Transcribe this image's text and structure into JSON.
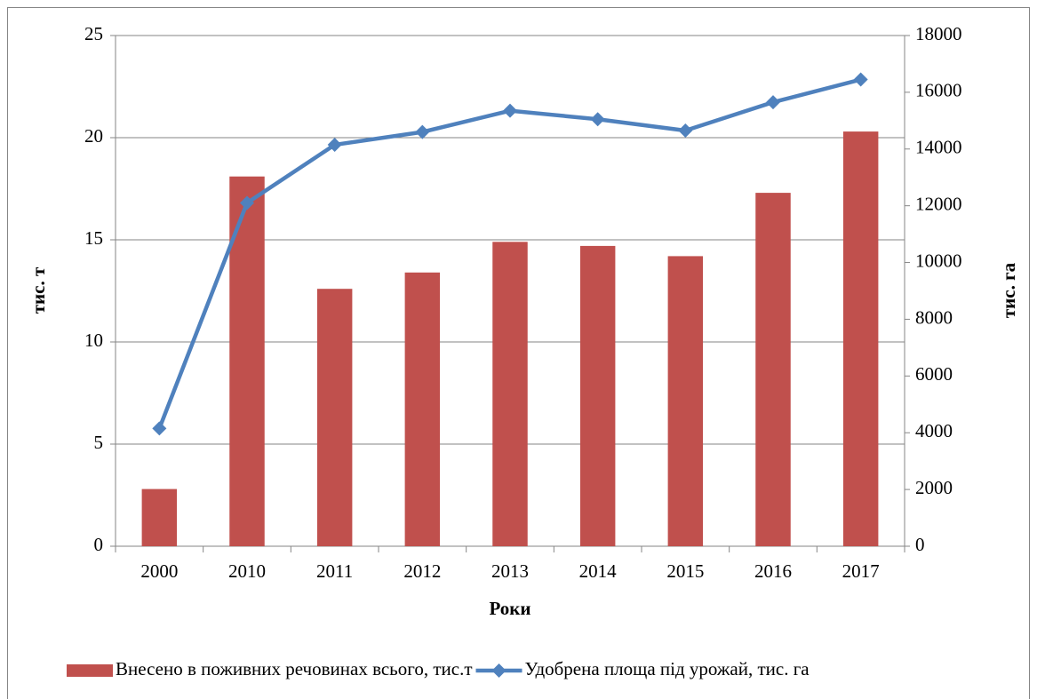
{
  "chart_data": {
    "type": "bar_line",
    "categories": [
      "2000",
      "2010",
      "2011",
      "2012",
      "2013",
      "2014",
      "2015",
      "2016",
      "2017"
    ],
    "series": [
      {
        "name": "Внесено в поживних речовинах всього, тис.т",
        "type": "bar",
        "color": "#c0504d",
        "values": [
          2.8,
          18.1,
          12.6,
          13.4,
          14.9,
          14.7,
          14.2,
          17.3,
          20.3
        ]
      },
      {
        "name": "Удобрена площа під урожай, тис. га",
        "type": "line",
        "axis": "y2",
        "color": "#4f81bd",
        "values": [
          4150,
          12100,
          14150,
          14600,
          15350,
          15050,
          14650,
          15650,
          16450
        ]
      }
    ],
    "x_label": "Роки",
    "y_label": "тис. т",
    "y2_label": "тис. га",
    "ylim": [
      0,
      25
    ],
    "yticks": [
      0,
      5,
      10,
      15,
      20,
      25
    ],
    "y2lim": [
      0,
      18000
    ],
    "y2ticks": [
      0,
      2000,
      4000,
      6000,
      8000,
      10000,
      12000,
      14000,
      16000,
      18000
    ],
    "grid": true,
    "legend": "bottom"
  }
}
